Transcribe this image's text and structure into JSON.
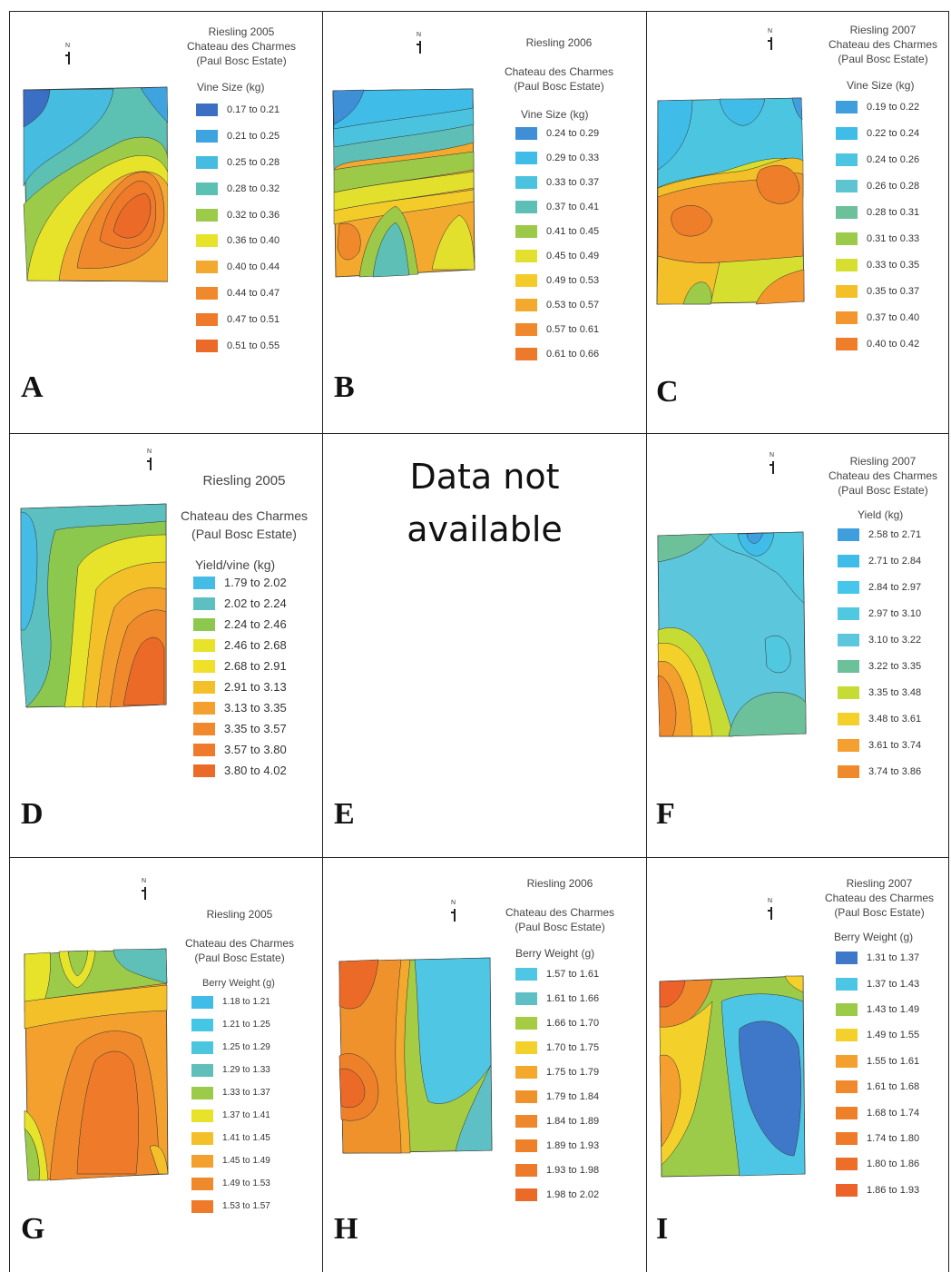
{
  "panels": [
    {
      "id": "A",
      "letter": "A",
      "title_lines": [
        "Riesling 2005",
        "Chateau des Charmes",
        "(Paul Bosc Estate)"
      ],
      "legend_title": "Vine Size (kg)",
      "legend": [
        "0.17 to 0.21",
        "0.21 to 0.25",
        "0.25 to 0.28",
        "0.28 to 0.32",
        "0.32 to 0.36",
        "0.36 to 0.40",
        "0.40 to 0.44",
        "0.44 to 0.47",
        "0.47 to 0.51",
        "0.51 to 0.55"
      ],
      "colors": [
        "#3a6fc4",
        "#3fa3e0",
        "#45bce0",
        "#5cc0b3",
        "#9ccb4a",
        "#e6e32a",
        "#f3a830",
        "#f0882c",
        "#ee7a2a",
        "#ec6a28"
      ]
    },
    {
      "id": "B",
      "letter": "B",
      "title_lines": [
        "Riesling 2006",
        "Chateau des Charmes",
        "(Paul Bosc Estate)"
      ],
      "legend_title": "Vine Size (kg)",
      "legend": [
        "0.24 to 0.29",
        "0.29 to 0.33",
        "0.33 to 0.37",
        "0.37 to 0.41",
        "0.41 to 0.45",
        "0.45 to 0.49",
        "0.49 to 0.53",
        "0.53 to 0.57",
        "0.57 to 0.61",
        "0.61 to 0.66"
      ],
      "colors": [
        "#3f8fd6",
        "#3fbde8",
        "#4cc3de",
        "#5dbfb5",
        "#9cc948",
        "#e2e02c",
        "#f3cc2a",
        "#f3a82e",
        "#f0882c",
        "#ec7a2a"
      ]
    },
    {
      "id": "C",
      "letter": "C",
      "title_lines": [
        "Riesling 2007",
        "Chateau des Charmes",
        "(Paul Bosc Estate)"
      ],
      "legend_title": "Vine Size (kg)",
      "legend": [
        "0.19 to 0.22",
        "0.22 to 0.24",
        "0.24 to 0.26",
        "0.26 to 0.28",
        "0.28 to 0.31",
        "0.31 to 0.33",
        "0.33 to 0.35",
        "0.35 to 0.37",
        "0.37 to 0.40",
        "0.40 to 0.42"
      ],
      "colors": [
        "#3f9fde",
        "#3fbde8",
        "#4cc6e0",
        "#5ec4cf",
        "#6cc09a",
        "#9ccb4a",
        "#d6de30",
        "#f3c02a",
        "#f3962e",
        "#ef7e2a"
      ]
    },
    {
      "id": "D",
      "letter": "D",
      "title_lines": [
        "Riesling 2005",
        "Chateau des Charmes",
        "(Paul Bosc Estate)"
      ],
      "legend_title": "Yield/vine (kg)",
      "legend": [
        "1.79 to 2.02",
        "2.02 to 2.24",
        "2.24 to 2.46",
        "2.46 to 2.68",
        "2.68 to 2.91",
        "2.91 to 3.13",
        "3.13 to 3.35",
        "3.35 to 3.57",
        "3.57 to 3.80",
        "3.80 to 4.02"
      ],
      "colors": [
        "#45bce6",
        "#5cc0c0",
        "#8cc84e",
        "#e6e32a",
        "#f0e02a",
        "#f3c02a",
        "#f3a02e",
        "#f0882c",
        "#ee7a2a",
        "#ec6a28"
      ]
    },
    {
      "id": "E",
      "letter": "E",
      "not_available": [
        "Data not",
        "available"
      ]
    },
    {
      "id": "F",
      "letter": "F",
      "title_lines": [
        "Riesling 2007",
        "Chateau des Charmes",
        "(Paul Bosc Estate)"
      ],
      "legend_title": "Yield (kg)",
      "legend": [
        "2.58 to 2.71",
        "2.71 to 2.84",
        "2.84 to 2.97",
        "2.97 to 3.10",
        "3.10 to 3.22",
        "3.22 to 3.35",
        "3.35 to 3.48",
        "3.48 to 3.61",
        "3.61 to 3.74",
        "3.74 to 3.86"
      ],
      "colors": [
        "#3f9fde",
        "#3fbde8",
        "#45c6ea",
        "#4fc8e0",
        "#5cc6dc",
        "#6cc09a",
        "#c6dc34",
        "#f3d02a",
        "#f3a02e",
        "#f0882c"
      ]
    },
    {
      "id": "G",
      "letter": "G",
      "title_lines": [
        "Riesling 2005",
        "Chateau des Charmes",
        "(Paul Bosc Estate)"
      ],
      "legend_title": "Berry Weight (g)",
      "legend": [
        "1.18 to 1.21",
        "1.21 to 1.25",
        "1.25 to 1.29",
        "1.29 to 1.33",
        "1.33 to 1.37",
        "1.37 to 1.41",
        "1.41 to 1.45",
        "1.45 to 1.49",
        "1.49 to 1.53",
        "1.53 to 1.57"
      ],
      "colors": [
        "#3fbde8",
        "#45c6e4",
        "#4cc6de",
        "#5ec0b8",
        "#9ccb4a",
        "#e6e32a",
        "#f3c02a",
        "#f3a02e",
        "#f0882c",
        "#ee7a2a"
      ]
    },
    {
      "id": "H",
      "letter": "H",
      "title_lines": [
        "Riesling 2006",
        "Chateau des Charmes",
        "(Paul Bosc Estate)"
      ],
      "legend_title": "Berry Weight (g)",
      "legend": [
        "1.57 to 1.61",
        "1.61 to 1.66",
        "1.66 to 1.70",
        "1.70 to 1.75",
        "1.75 to 1.79",
        "1.79 to 1.84",
        "1.84 to 1.89",
        "1.89 to 1.93",
        "1.93 to 1.98",
        "1.98 to 2.02"
      ],
      "colors": [
        "#4fc6e4",
        "#5ec0c4",
        "#a6cc44",
        "#f3d02a",
        "#f3a82e",
        "#f0922c",
        "#ef882c",
        "#ee802a",
        "#ed7a2a",
        "#ec6a28"
      ]
    },
    {
      "id": "I",
      "letter": "I",
      "title_lines": [
        "Riesling 2007",
        "Chateau des Charmes",
        "(Paul Bosc Estate)"
      ],
      "legend_title": "Berry Weight (g)",
      "legend": [
        "1.31 to 1.37",
        "1.37 to 1.43",
        "1.43 to 1.49",
        "1.49 to 1.55",
        "1.55 to 1.61",
        "1.61 to 1.68",
        "1.68 to 1.74",
        "1.74 to 1.80",
        "1.80 to 1.86",
        "1.86 to 1.93"
      ],
      "colors": [
        "#3f78c8",
        "#4cc6e4",
        "#9ccb4a",
        "#f3d02a",
        "#f3a02e",
        "#f0882c",
        "#ef802a",
        "#ee7a2a",
        "#ed6e28",
        "#ec6228"
      ]
    }
  ]
}
